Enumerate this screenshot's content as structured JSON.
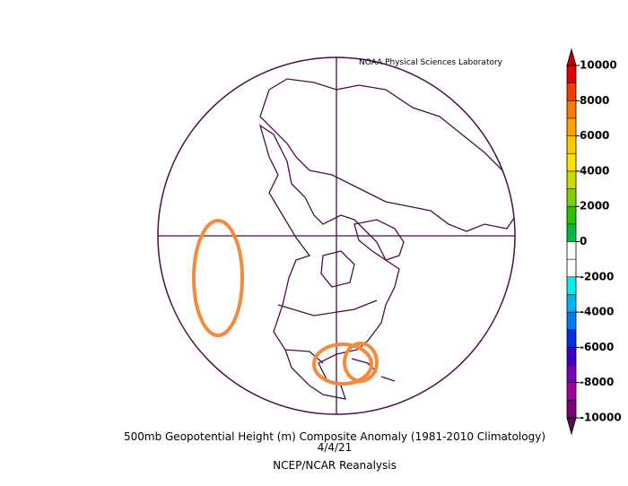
{
  "source": "NOAA Physical Sciences Laboratory",
  "colorbar": {
    "ticks": [
      10000,
      8000,
      6000,
      4000,
      2000,
      0,
      -2000,
      -4000,
      -6000,
      -8000,
      -10000
    ],
    "range": [
      -10000,
      10000
    ],
    "colors": [
      "#e00000",
      "#f43c00",
      "#ff7800",
      "#ffa000",
      "#ffc800",
      "#ffe000",
      "#c8dc00",
      "#80d000",
      "#30c000",
      "#00b840",
      "#ffffff",
      "#ffffff",
      "#00f0f0",
      "#00b4f0",
      "#0078f0",
      "#0030e0",
      "#3c00c8",
      "#7800b4",
      "#a000a0",
      "#780078"
    ],
    "arrow_colors": [
      "#c00000",
      "#501050"
    ]
  },
  "caption": {
    "title": "500mb Geopotential Height (m) Composite Anomaly (1981-2010 Climatology)",
    "date": "4/4/21",
    "dataset": "NCEP/NCAR Reanalysis"
  }
}
